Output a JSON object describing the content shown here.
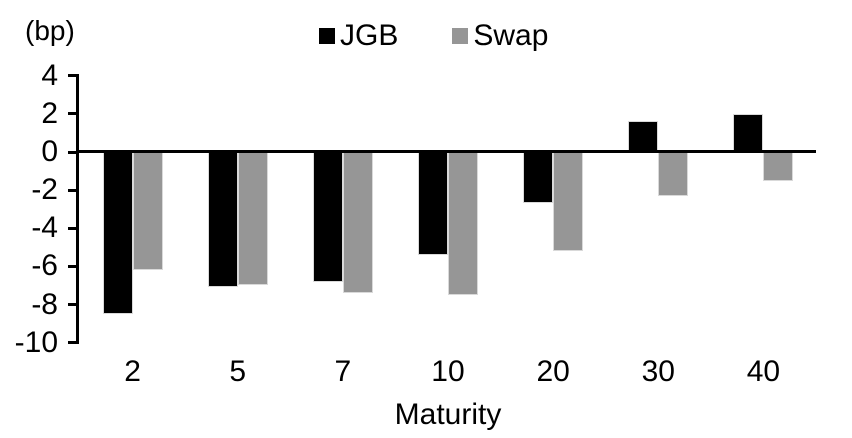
{
  "chart_data": {
    "type": "bar",
    "title": "",
    "unit_label": "(bp)",
    "xlabel": "Maturity",
    "ylabel": "",
    "categories": [
      "2",
      "5",
      "7",
      "10",
      "20",
      "30",
      "40"
    ],
    "series": [
      {
        "name": "JGB",
        "color": "#000000",
        "values": [
          -8.5,
          -7.1,
          -6.8,
          -5.4,
          -2.7,
          1.6,
          2.0
        ]
      },
      {
        "name": "Swap",
        "color": "#969696",
        "values": [
          -6.2,
          -7.0,
          -7.4,
          -7.5,
          -5.2,
          -2.3,
          -1.5
        ]
      }
    ],
    "y_ticks": [
      4,
      2,
      0,
      -2,
      -4,
      -6,
      -8,
      -10
    ],
    "ylim": [
      -10,
      4
    ],
    "grid": false,
    "legend_position": "top-center",
    "axis_color": "#000000",
    "bar_border_color": "#d9d9d9",
    "background_color": "#ffffff"
  }
}
